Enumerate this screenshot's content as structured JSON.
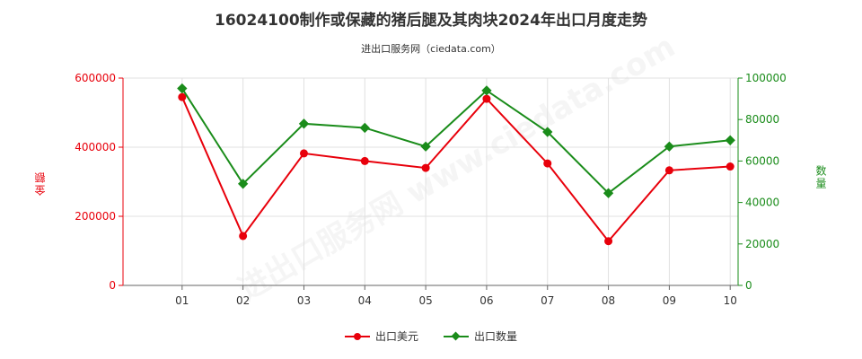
{
  "chart_data": {
    "type": "line",
    "title": "16024100制作或保藏的猪后腿及其肉块2024年出口月度走势",
    "subtitle": "进出口服务网（ciedata.com）",
    "categories": [
      "01",
      "02",
      "03",
      "04",
      "05",
      "06",
      "07",
      "08",
      "09",
      "10"
    ],
    "y_left": {
      "label": "金额",
      "ticks": [
        "0",
        "200000",
        "400000",
        "600000"
      ],
      "range": [
        0,
        600000
      ]
    },
    "y_right": {
      "label": "数量",
      "ticks": [
        "0",
        "20000",
        "40000",
        "60000",
        "80000",
        "100000"
      ],
      "range": [
        0,
        100000
      ]
    },
    "series": [
      {
        "name": "出口美元",
        "axis": "left",
        "color": "#e8000b",
        "values": [
          545000,
          143000,
          382000,
          360000,
          340000,
          540000,
          353000,
          128000,
          333000,
          344000
        ]
      },
      {
        "name": "出口数量",
        "axis": "right",
        "color": "#1a8c1a",
        "values": [
          95000,
          49000,
          78000,
          76000,
          67000,
          94000,
          74000,
          44500,
          67000,
          70000
        ]
      }
    ],
    "grid": true,
    "legend": "bottom-center",
    "watermark": "进出口服务网 www.ciedata.com"
  }
}
